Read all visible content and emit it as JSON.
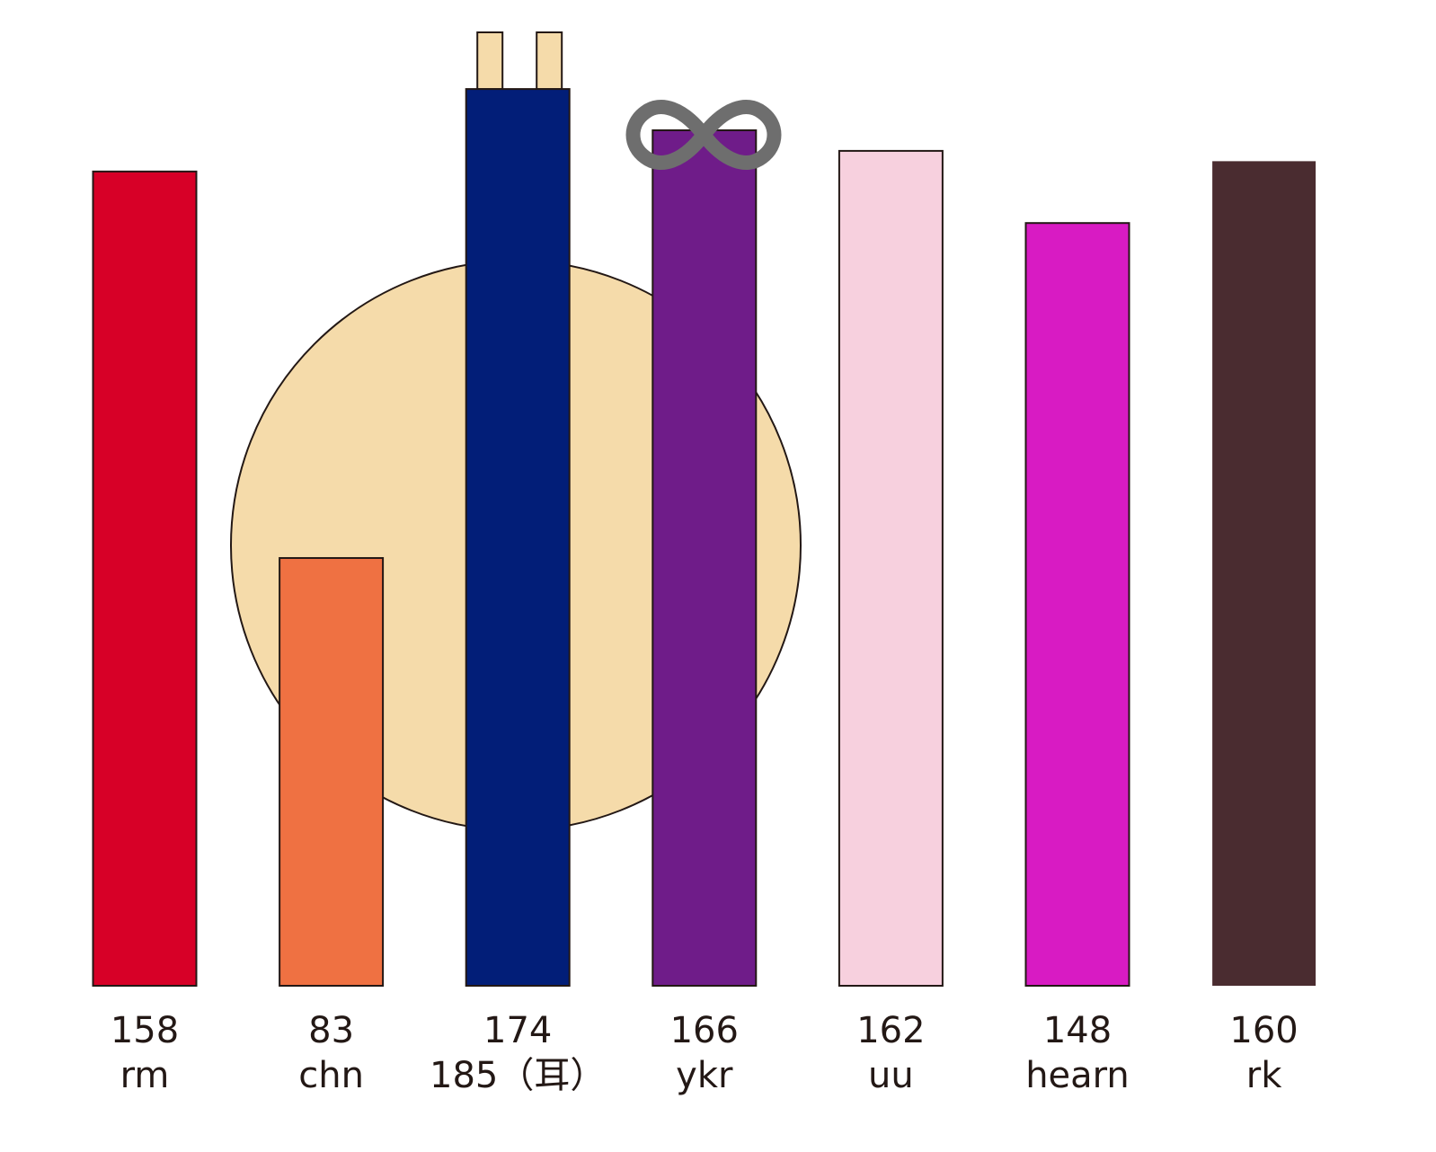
{
  "chart_data": {
    "type": "bar",
    "categories": [
      "rm",
      "chn",
      null,
      "ykr",
      "uu",
      "hearn",
      "rk"
    ],
    "values": [
      158,
      83,
      174,
      166,
      162,
      148,
      160
    ],
    "colors": [
      "#d70027",
      "#ef7142",
      "#021e78",
      "#6f1c89",
      "#f7d0de",
      "#d81bc3",
      "#4a2c30"
    ],
    "ears": {
      "color": "#f5dbaa",
      "values": [
        null,
        null,
        185,
        null,
        null,
        null,
        null
      ],
      "value_labels": [
        null,
        null,
        "185（耳）",
        null,
        null,
        null,
        null
      ]
    }
  }
}
